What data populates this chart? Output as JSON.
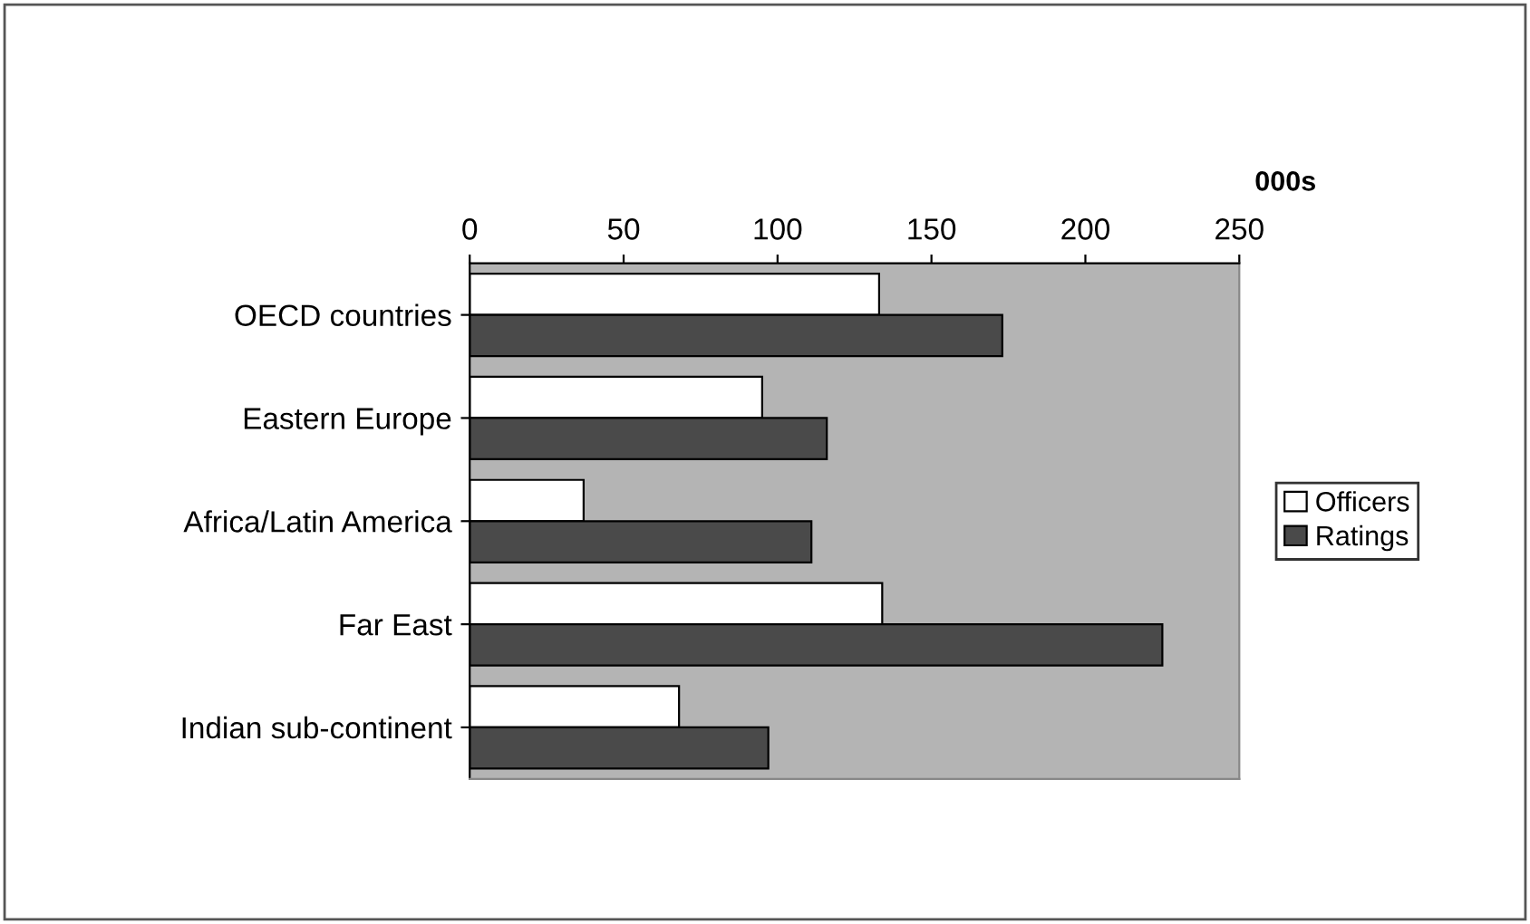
{
  "chart_data": {
    "type": "bar",
    "orientation": "horizontal",
    "xlabel": "000s",
    "categories": [
      "OECD countries",
      "Eastern Europe",
      "Africa/Latin America",
      "Far East",
      "Indian sub-continent"
    ],
    "series": [
      {
        "name": "Officers",
        "color": "#ffffff",
        "values": [
          133,
          95,
          37,
          134,
          68
        ]
      },
      {
        "name": "Ratings",
        "color": "#4a4a4a",
        "values": [
          173,
          116,
          111,
          225,
          97
        ]
      }
    ],
    "xlim": [
      0,
      250
    ],
    "xticks": [
      0,
      50,
      100,
      150,
      200,
      250
    ],
    "grid": false,
    "legend": "right"
  }
}
